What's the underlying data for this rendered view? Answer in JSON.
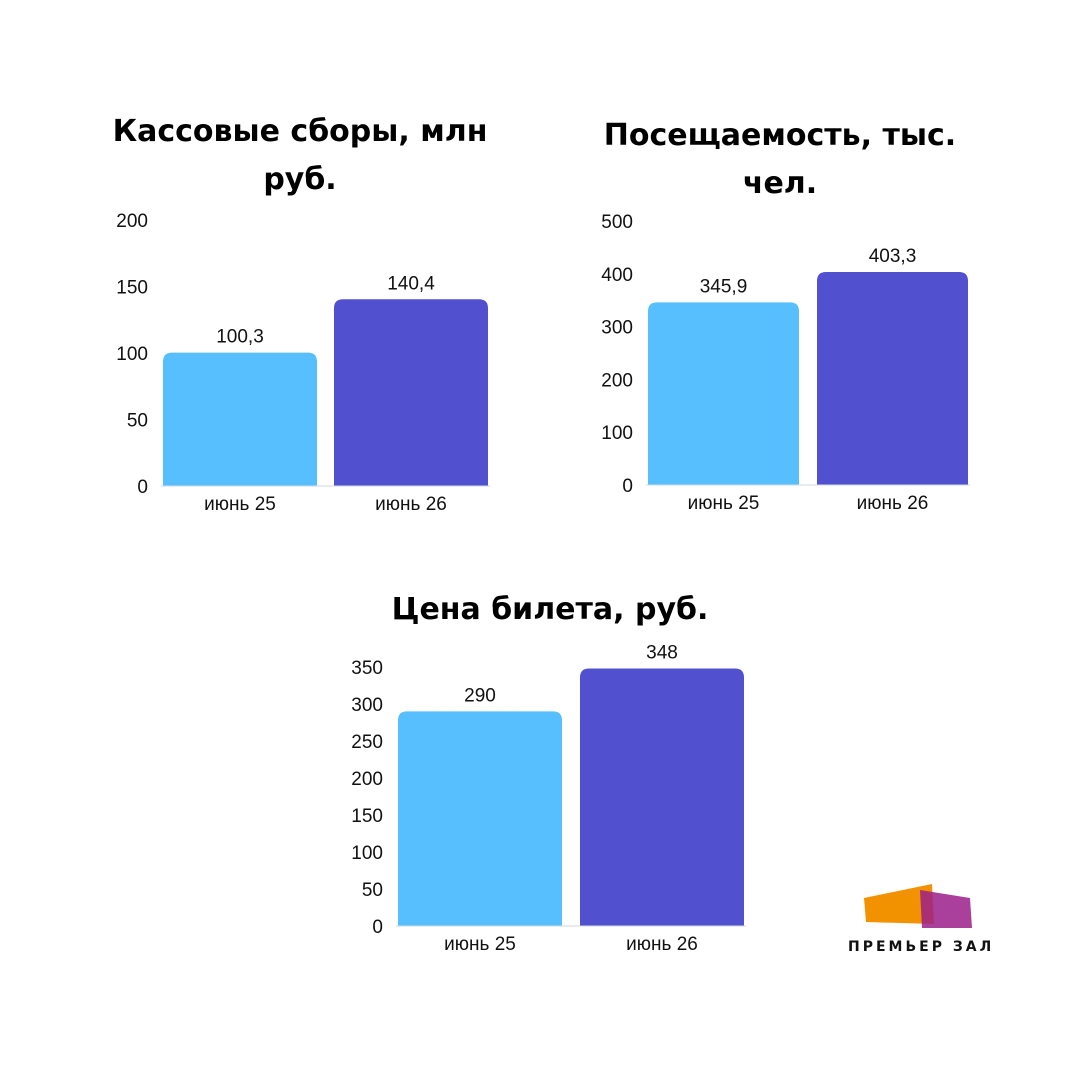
{
  "chart_data": [
    {
      "type": "bar",
      "title": "Кассовые сборы, млн руб.",
      "categories": [
        "июнь 25",
        "июнь 26"
      ],
      "values": [
        100.3,
        140.4
      ],
      "value_labels": [
        "100,3",
        "140,4"
      ],
      "yticks": [
        0,
        50,
        100,
        150,
        200
      ],
      "ylim": [
        0,
        200
      ],
      "colors": [
        "#57bffe",
        "#5150cf"
      ],
      "grid": false
    },
    {
      "type": "bar",
      "title": "Посещаемость, тыс. чел.",
      "categories": [
        "июнь 25",
        "июнь 26"
      ],
      "values": [
        345.9,
        403.3
      ],
      "value_labels": [
        "345,9",
        "403,3"
      ],
      "yticks": [
        0,
        100,
        200,
        300,
        400,
        500
      ],
      "ylim": [
        0,
        500
      ],
      "colors": [
        "#57bffe",
        "#5150cf"
      ],
      "grid": false
    },
    {
      "type": "bar",
      "title": "Цена билета, руб.",
      "categories": [
        "июнь 25",
        "июнь 26"
      ],
      "values": [
        290,
        348
      ],
      "value_labels": [
        "290",
        "348"
      ],
      "yticks": [
        0,
        50,
        100,
        150,
        200,
        250,
        300,
        350
      ],
      "ylim": [
        0,
        350
      ],
      "colors": [
        "#57bffe",
        "#5150cf"
      ],
      "grid": false
    }
  ],
  "logo": {
    "text": "ПРЕМЬЕР ЗАЛ",
    "colors": [
      "#f39200",
      "#9b1f8a",
      "#e8321e"
    ]
  }
}
